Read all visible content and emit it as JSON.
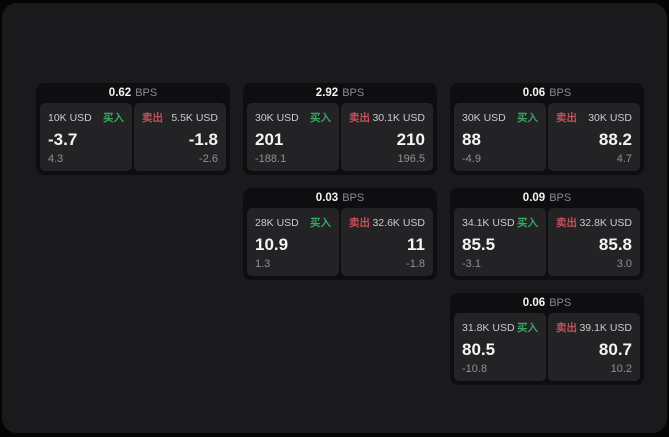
{
  "colors": {
    "page_bg": "#050505",
    "window_bg": "#1a1a1c",
    "card_bg": "#0e0e10",
    "panel_bg": "#232326",
    "text_primary": "#f4f4f5",
    "text_muted": "#8b8b8f",
    "text_amount": "#cbcbce",
    "text_delta": "#909093",
    "buy_green": "#36a75f",
    "sell_red": "#c64f57"
  },
  "labels": {
    "bps": "BPS",
    "buy": "买入",
    "sell": "卖出"
  },
  "cards": [
    {
      "col": 1,
      "row": 1,
      "bps": "0.62",
      "buy": {
        "amount": "10K USD",
        "price": "-3.7",
        "delta": "4.3"
      },
      "sell": {
        "amount": "5.5K USD",
        "price": "-1.8",
        "delta": "-2.6"
      }
    },
    {
      "col": 2,
      "row": 1,
      "bps": "2.92",
      "buy": {
        "amount": "30K USD",
        "price": "201",
        "delta": "-188.1"
      },
      "sell": {
        "amount": "30.1K USD",
        "price": "210",
        "delta": "196.5"
      }
    },
    {
      "col": 3,
      "row": 1,
      "bps": "0.06",
      "buy": {
        "amount": "30K USD",
        "price": "88",
        "delta": "-4.9"
      },
      "sell": {
        "amount": "30K USD",
        "price": "88.2",
        "delta": "4.7"
      }
    },
    {
      "col": 2,
      "row": 2,
      "bps": "0.03",
      "buy": {
        "amount": "28K USD",
        "price": "10.9",
        "delta": "1.3"
      },
      "sell": {
        "amount": "32.6K USD",
        "price": "11",
        "delta": "-1.8"
      }
    },
    {
      "col": 3,
      "row": 2,
      "bps": "0.09",
      "buy": {
        "amount": "34.1K USD",
        "price": "85.5",
        "delta": "-3.1"
      },
      "sell": {
        "amount": "32.8K USD",
        "price": "85.8",
        "delta": "3.0"
      }
    },
    {
      "col": 3,
      "row": 3,
      "bps": "0.06",
      "buy": {
        "amount": "31.8K USD",
        "price": "80.5",
        "delta": "-10.8"
      },
      "sell": {
        "amount": "39.1K USD",
        "price": "80.7",
        "delta": "10.2"
      }
    }
  ]
}
